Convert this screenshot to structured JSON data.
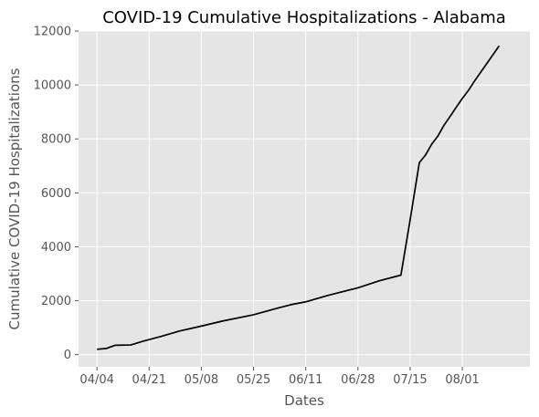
{
  "chart_data": {
    "type": "line",
    "title": "COVID-19 Cumulative Hospitalizations - Alabama",
    "xlabel": "Dates",
    "ylabel": "Cumulative COVID-19 Hospitalizations",
    "x_tick_labels": [
      "04/04",
      "04/21",
      "05/08",
      "05/25",
      "06/11",
      "06/28",
      "07/15",
      "08/01"
    ],
    "x_ticks": [
      "2020-04-04",
      "2020-04-21",
      "2020-05-08",
      "2020-05-25",
      "2020-06-11",
      "2020-06-28",
      "2020-07-15",
      "2020-08-01"
    ],
    "y_ticks": [
      0,
      2000,
      4000,
      6000,
      8000,
      10000,
      12000
    ],
    "xlim": [
      "2020-03-29",
      "2020-08-23"
    ],
    "ylim": [
      -450,
      12000
    ],
    "grid": true,
    "line_color": "#000000",
    "background_color": "#e5e5e5",
    "grid_color": "#ffffff",
    "series": [
      {
        "points": [
          {
            "x": "2020-04-04",
            "y": 200
          },
          {
            "x": "2020-04-07",
            "y": 230
          },
          {
            "x": "2020-04-10",
            "y": 350
          },
          {
            "x": "2020-04-15",
            "y": 360
          },
          {
            "x": "2020-04-19",
            "y": 500
          },
          {
            "x": "2020-04-25",
            "y": 680
          },
          {
            "x": "2020-05-01",
            "y": 880
          },
          {
            "x": "2020-05-08",
            "y": 1060
          },
          {
            "x": "2020-05-15",
            "y": 1250
          },
          {
            "x": "2020-05-25",
            "y": 1480
          },
          {
            "x": "2020-06-01",
            "y": 1700
          },
          {
            "x": "2020-06-06",
            "y": 1850
          },
          {
            "x": "2020-06-11",
            "y": 1960
          },
          {
            "x": "2020-06-18",
            "y": 2190
          },
          {
            "x": "2020-06-28",
            "y": 2480
          },
          {
            "x": "2020-07-05",
            "y": 2740
          },
          {
            "x": "2020-07-12",
            "y": 2950
          },
          {
            "x": "2020-07-15",
            "y": 5000
          },
          {
            "x": "2020-07-18",
            "y": 7120
          },
          {
            "x": "2020-07-20",
            "y": 7400
          },
          {
            "x": "2020-07-22",
            "y": 7800
          },
          {
            "x": "2020-07-24",
            "y": 8100
          },
          {
            "x": "2020-07-26",
            "y": 8500
          },
          {
            "x": "2020-07-28",
            "y": 8830
          },
          {
            "x": "2020-07-30",
            "y": 9170
          },
          {
            "x": "2020-08-01",
            "y": 9500
          },
          {
            "x": "2020-08-03",
            "y": 9800
          },
          {
            "x": "2020-08-05",
            "y": 10150
          },
          {
            "x": "2020-08-09",
            "y": 10800
          },
          {
            "x": "2020-08-13",
            "y": 11450
          }
        ]
      }
    ]
  }
}
